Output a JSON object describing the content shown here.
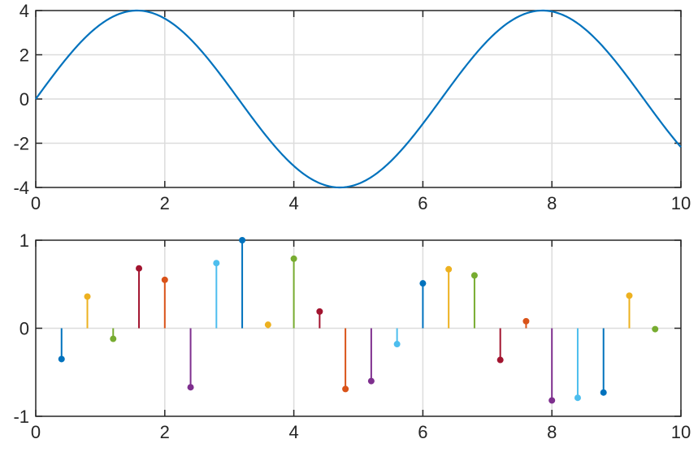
{
  "chart_data": [
    {
      "type": "line",
      "function": "4*sin(x)",
      "x_range": [
        0,
        10
      ],
      "sample_count": 400,
      "xlim": [
        0,
        10
      ],
      "ylim": [
        -4,
        4
      ],
      "xticks": [
        0,
        2,
        4,
        6,
        8,
        10
      ],
      "yticks": [
        -4,
        -2,
        0,
        2,
        4
      ],
      "xtick_labels": [
        "0",
        "2",
        "4",
        "6",
        "8",
        "10"
      ],
      "ytick_labels": [
        "-4",
        "-2",
        "0",
        "2",
        "4"
      ],
      "grid": true,
      "series": [
        {
          "color": "#0072BD"
        }
      ],
      "title": "",
      "xlabel": "",
      "ylabel": ""
    },
    {
      "type": "stem",
      "xlim": [
        0,
        10
      ],
      "ylim": [
        -1,
        1
      ],
      "xticks": [
        0,
        2,
        4,
        6,
        8,
        10
      ],
      "yticks": [
        -1,
        0,
        1
      ],
      "xtick_labels": [
        "0",
        "2",
        "4",
        "6",
        "8",
        "10"
      ],
      "ytick_labels": [
        "-1",
        "0",
        "1"
      ],
      "grid": true,
      "x": [
        0.4,
        0.8,
        1.2,
        1.6,
        2.0,
        2.4,
        2.8,
        3.2,
        3.6,
        4.0,
        4.4,
        4.8,
        5.2,
        5.6,
        6.0,
        6.4,
        6.8,
        7.2,
        7.6,
        8.0,
        8.4,
        8.8,
        9.2,
        9.6
      ],
      "y": [
        -0.35,
        0.36,
        -0.12,
        0.68,
        0.55,
        -0.67,
        0.74,
        1.0,
        0.04,
        0.79,
        0.19,
        -0.69,
        -0.6,
        -0.18,
        0.51,
        0.67,
        0.6,
        -0.36,
        0.08,
        -0.82,
        -0.79,
        -0.73,
        0.37,
        -0.01
      ],
      "colors": [
        "#0072BD",
        "#EDB120",
        "#77AC30",
        "#A2142F",
        "#D95319",
        "#7E2F8E",
        "#4DBEEE",
        "#0072BD",
        "#EDB120",
        "#77AC30",
        "#A2142F",
        "#D95319",
        "#7E2F8E",
        "#4DBEEE",
        "#0072BD",
        "#EDB120",
        "#77AC30",
        "#A2142F",
        "#D95319",
        "#7E2F8E",
        "#4DBEEE",
        "#0072BD",
        "#EDB120",
        "#77AC30"
      ],
      "title": "",
      "xlabel": "",
      "ylabel": ""
    }
  ]
}
